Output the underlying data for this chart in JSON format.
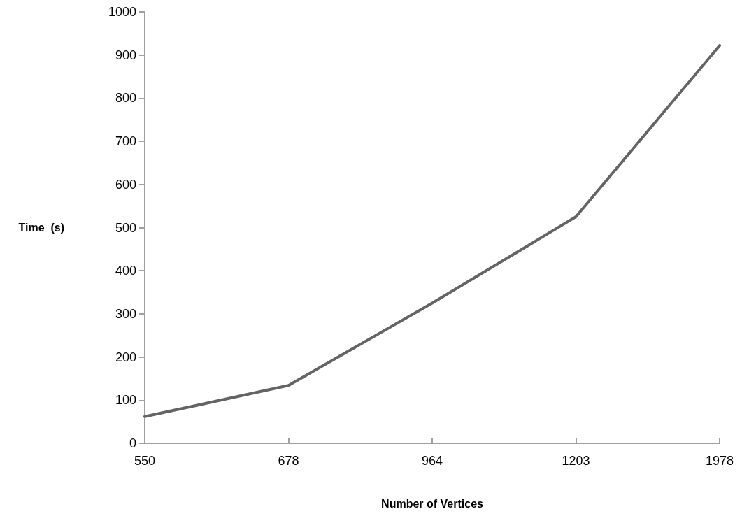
{
  "chart_data": {
    "type": "line",
    "xlabel": "Number of Vertices",
    "ylabel": "Time  (s)",
    "categories": [
      "550",
      "678",
      "964",
      "1203",
      "1978"
    ],
    "series": [
      {
        "color": "#646464",
        "values": [
          62,
          134,
          325,
          525,
          922
        ]
      }
    ],
    "ylim": [
      0,
      1000
    ],
    "yticks": [
      0,
      100,
      200,
      300,
      400,
      500,
      600,
      700,
      800,
      900,
      1000
    ],
    "grid": false,
    "marker": "none",
    "line_style": "solid"
  }
}
